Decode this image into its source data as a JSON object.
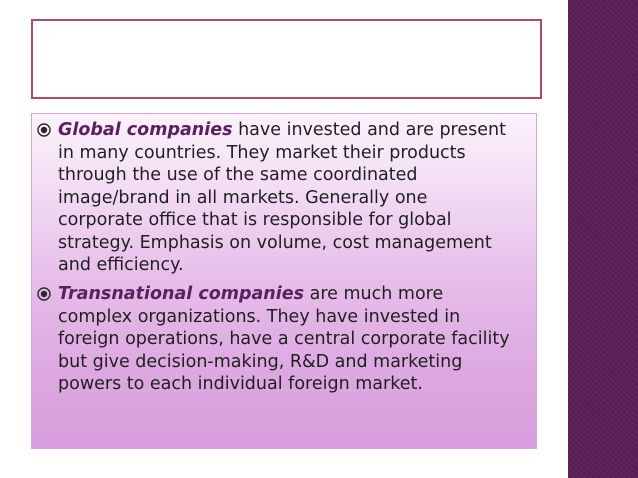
{
  "slide": {
    "title": "",
    "bullets": [
      {
        "term": "Global companies",
        "text": " have invested and are present in many countries. They market their products through the use of the same coordinated image/brand in all markets. Generally one corporate office that is responsible for global strategy. Emphasis on volume, cost management and efficiency."
      },
      {
        "term": "Transnational companies",
        "text": " are much more complex organizations. They have invested in foreign operations, have a central corporate facility but give decision-making, R&D and marketing powers to each individual foreign market."
      }
    ]
  },
  "icons": {
    "bullet": "circle-bullet-icon"
  },
  "colors": {
    "accent_border": "#b3476f",
    "side_band": "#5a1f55",
    "term_text": "#5a2061",
    "body_text": "#1f1f1f"
  }
}
